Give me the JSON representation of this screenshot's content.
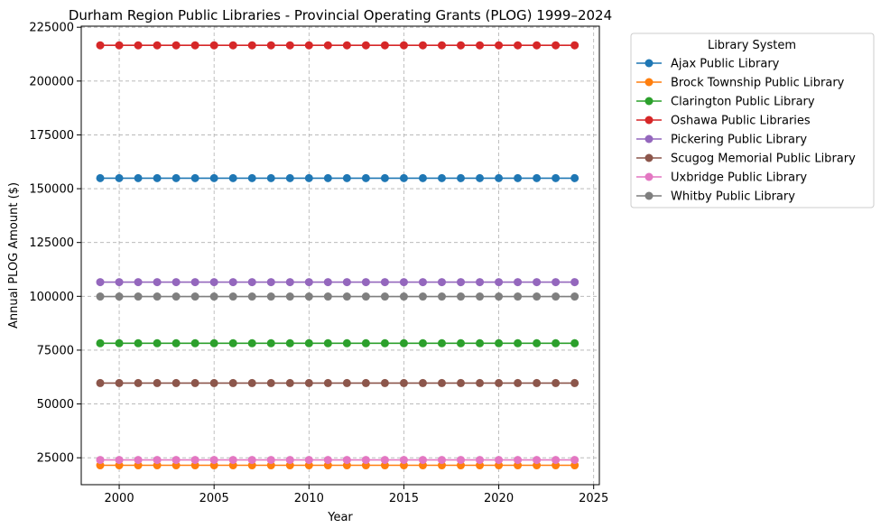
{
  "chart_data": {
    "type": "line",
    "title": "Durham Region Public Libraries - Provincial Operating Grants (PLOG) 1999–2024",
    "xlabel": "Year",
    "ylabel": "Annual PLOG Amount ($)",
    "xlim": [
      1998,
      2025.3
    ],
    "ylim": [
      12500,
      225500
    ],
    "x_ticks": [
      2000,
      2005,
      2010,
      2015,
      2020,
      2025
    ],
    "y_ticks": [
      25000,
      50000,
      75000,
      100000,
      125000,
      150000,
      175000,
      200000,
      225000
    ],
    "x_tick_labels": [
      "2000",
      "2005",
      "2010",
      "2015",
      "2020",
      "2025"
    ],
    "y_tick_labels": [
      "25000",
      "50000",
      "75000",
      "100000",
      "125000",
      "150000",
      "175000",
      "200000",
      "225000"
    ],
    "grid": true,
    "legend": {
      "title": "Library System",
      "placement": "outside-upper-right"
    },
    "x": [
      1999,
      2000,
      2001,
      2002,
      2003,
      2004,
      2005,
      2006,
      2007,
      2008,
      2009,
      2010,
      2011,
      2012,
      2013,
      2014,
      2015,
      2016,
      2017,
      2018,
      2019,
      2020,
      2021,
      2022,
      2023,
      2024
    ],
    "series": [
      {
        "name": "Ajax Public Library",
        "color": "#1f77b4",
        "value": 154900
      },
      {
        "name": "Brock Township Public Library",
        "color": "#ff7f0e",
        "value": 21500
      },
      {
        "name": "Clarington Public Library",
        "color": "#2ca02c",
        "value": 78200
      },
      {
        "name": "Oshawa Public Libraries",
        "color": "#d62728",
        "value": 216600
      },
      {
        "name": "Pickering Public Library",
        "color": "#9467bd",
        "value": 106600
      },
      {
        "name": "Scugog Memorial Public Library",
        "color": "#8c564b",
        "value": 59700
      },
      {
        "name": "Uxbridge Public Library",
        "color": "#e377c2",
        "value": 24000
      },
      {
        "name": "Whitby Public Library",
        "color": "#7f7f7f",
        "value": 99900
      }
    ]
  }
}
